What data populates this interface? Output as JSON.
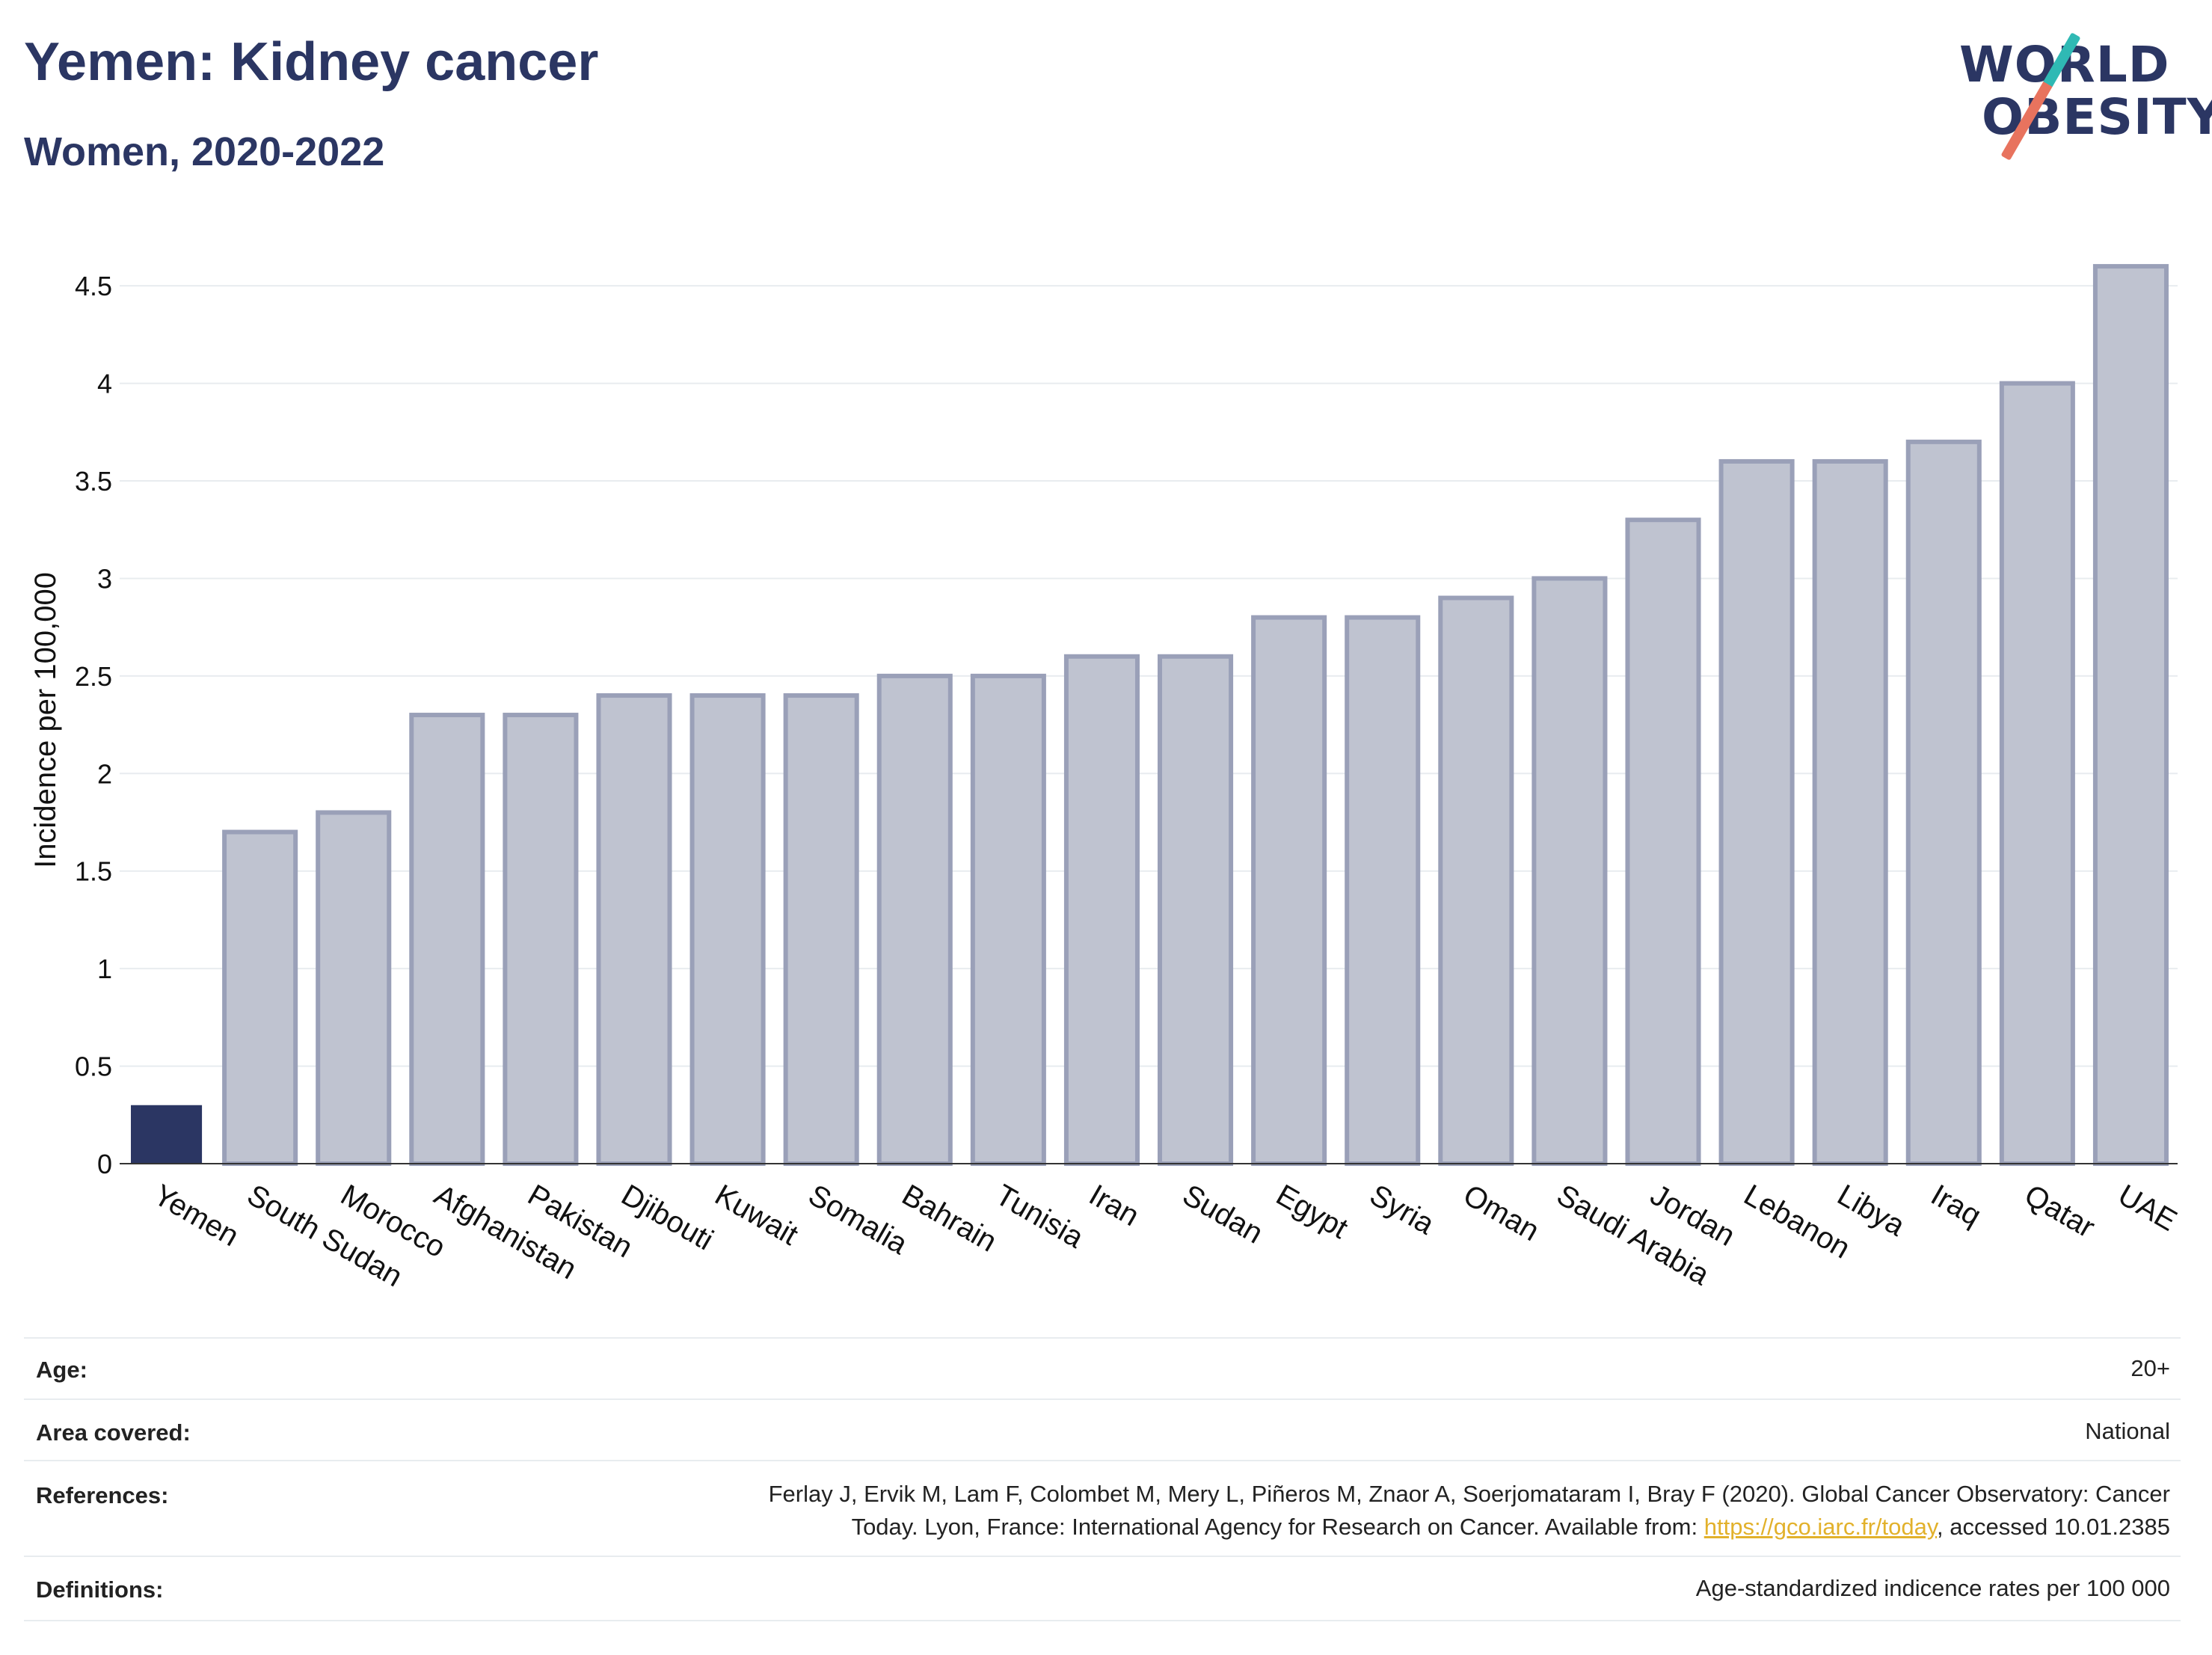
{
  "header": {
    "title": "Yemen: Kidney cancer",
    "subtitle": "Women, 2020-2022"
  },
  "logo": {
    "line1": "WORLD",
    "line2": "OBESITY",
    "colors": {
      "text": "#2b3663",
      "teal": "#2fb9b4",
      "coral": "#e8735e"
    }
  },
  "chart_data": {
    "type": "bar",
    "title": "Yemen: Kidney cancer",
    "subtitle": "Women, 2020-2022",
    "xlabel": "",
    "ylabel": "Incidence per 100,000",
    "ylim": [
      0,
      4.7
    ],
    "yticks": [
      0,
      0.5,
      1,
      1.5,
      2,
      2.5,
      3,
      3.5,
      4,
      4.5
    ],
    "ytick_labels": [
      "0",
      "0.5",
      "1",
      "1.5",
      "2",
      "2.5",
      "3",
      "3.5",
      "4",
      "4.5"
    ],
    "grid": true,
    "legend": "none",
    "highlight": "Yemen",
    "colors": {
      "highlight": "#2b3663",
      "other_fill": "#bfc3d0",
      "other_stroke": "#9aa0b8",
      "grid": "#e8ecef"
    },
    "categories": [
      "Yemen",
      "South Sudan",
      "Morocco",
      "Afghanistan",
      "Pakistan",
      "Djibouti",
      "Kuwait",
      "Somalia",
      "Bahrain",
      "Tunisia",
      "Iran",
      "Sudan",
      "Egypt",
      "Syria",
      "Oman",
      "Saudi Arabia",
      "Jordan",
      "Lebanon",
      "Libya",
      "Iraq",
      "Qatar",
      "UAE"
    ],
    "values": [
      0.3,
      1.7,
      1.8,
      2.3,
      2.3,
      2.4,
      2.4,
      2.4,
      2.5,
      2.5,
      2.6,
      2.6,
      2.8,
      2.8,
      2.9,
      3.0,
      3.3,
      3.6,
      3.6,
      3.7,
      4.0,
      4.6
    ]
  },
  "meta": {
    "age_label": "Age:",
    "age_value": "20+",
    "area_label": "Area covered:",
    "area_value": "National",
    "references_label": "References:",
    "references_line1": "Ferlay J, Ervik M, Lam F, Colombet M, Mery L, Piñeros M, Znaor A, Soerjomataram I, Bray F (2020). Global Cancer Observatory: Cancer",
    "references_line2_pre": "Today. Lyon, France: International Agency for Research on Cancer. Available from: ",
    "references_link": "https://gco.iarc.fr/today",
    "references_line2_post": ", accessed 10.01.2385",
    "definitions_label": "Definitions:",
    "definitions_value": "Age-standardized indicence rates per 100 000"
  }
}
